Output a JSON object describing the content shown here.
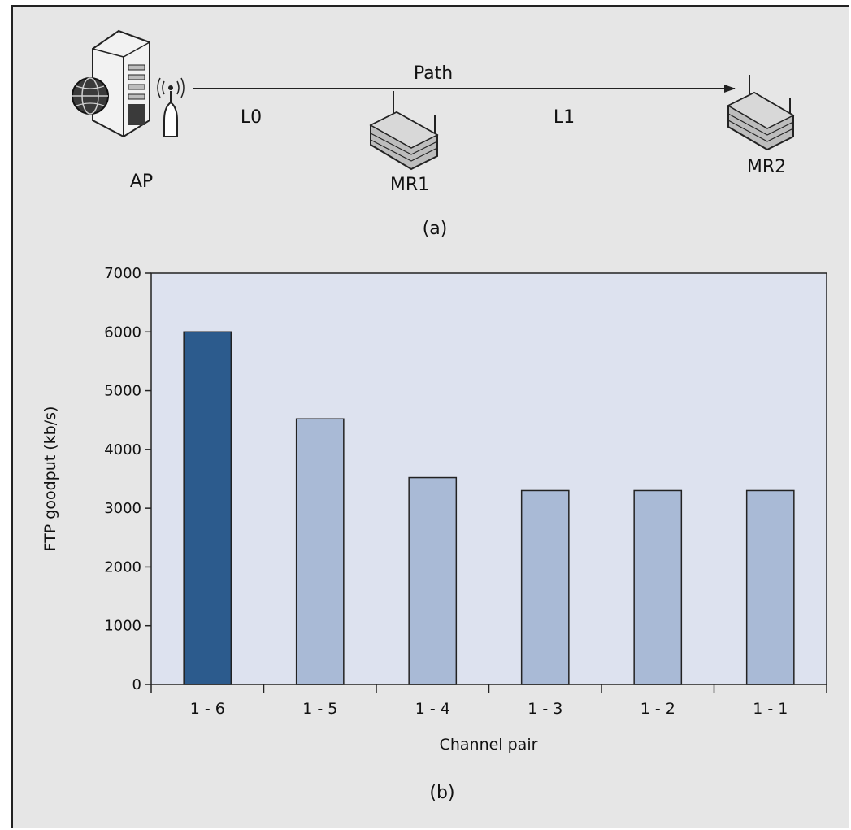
{
  "diagram": {
    "path_label": "Path",
    "link0_label": "L0",
    "link1_label": "L1",
    "ap_label": "AP",
    "mr1_label": "MR1",
    "mr2_label": "MR2",
    "caption": "(a)"
  },
  "chart_caption": "(b)",
  "chart_data": {
    "type": "bar",
    "categories": [
      "1 - 6",
      "1 - 5",
      "1 - 4",
      "1 - 3",
      "1 - 2",
      "1 - 1"
    ],
    "values": [
      6000,
      4520,
      3520,
      3300,
      3300,
      3300
    ],
    "highlight_index": 0,
    "xlabel": "Channel pair",
    "ylabel": "FTP goodput (kb/s)",
    "ylim": [
      0,
      7000
    ],
    "yticks": [
      0,
      1000,
      2000,
      3000,
      4000,
      5000,
      6000,
      7000
    ],
    "grid": false,
    "colors": {
      "highlight": "#2c5b8d",
      "bar": "#a9bad6",
      "plot_background": "#dde2ef",
      "figure_background": "#e6e6e6"
    }
  }
}
